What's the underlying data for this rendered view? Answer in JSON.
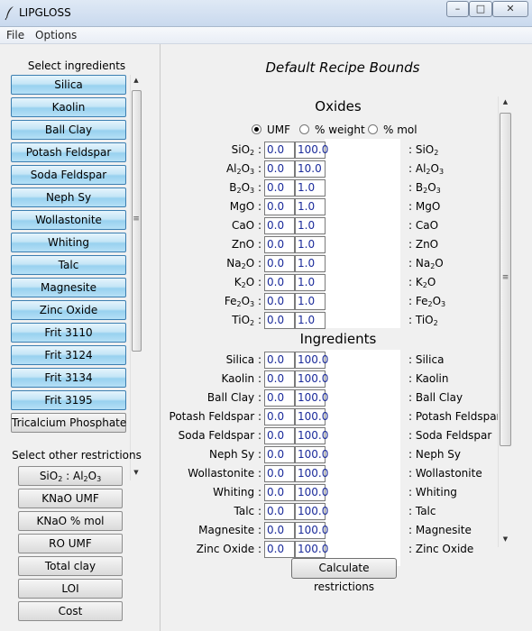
{
  "window": {
    "title": "LIPGLOSS",
    "minimize": "–",
    "maximize": "□",
    "close": "✕"
  },
  "menu": [
    "File",
    "Options"
  ],
  "left": {
    "ingredients_heading": "Select ingredients",
    "ingredients": [
      "Silica",
      "Kaolin",
      "Ball Clay",
      "Potash Feldspar",
      "Soda Feldspar",
      "Neph Sy",
      "Wollastonite",
      "Whiting",
      "Talc",
      "Magnesite",
      "Zinc Oxide",
      "Frit 3110",
      "Frit 3124",
      "Frit 3134",
      "Frit 3195",
      "Tricalcium Phosphate"
    ],
    "restrictions_heading": "Select other restrictions",
    "restrictions": [
      "SiO2 : Al2O3",
      "KNaO UMF",
      "KNaO % mol",
      "RO UMF",
      "Total clay",
      "LOI",
      "Cost"
    ]
  },
  "main": {
    "title": "Default Recipe Bounds",
    "oxides_heading": "Oxides",
    "units": [
      {
        "label": "UMF",
        "selected": true
      },
      {
        "label": "% weight",
        "selected": false
      },
      {
        "label": "% mol",
        "selected": false
      }
    ],
    "oxides": [
      {
        "name": "SiO2",
        "lo": "0.0",
        "hi": "100.0"
      },
      {
        "name": "Al2O3",
        "lo": "0.0",
        "hi": "10.0"
      },
      {
        "name": "B2O3",
        "lo": "0.0",
        "hi": "1.0"
      },
      {
        "name": "MgO",
        "lo": "0.0",
        "hi": "1.0"
      },
      {
        "name": "CaO",
        "lo": "0.0",
        "hi": "1.0"
      },
      {
        "name": "ZnO",
        "lo": "0.0",
        "hi": "1.0"
      },
      {
        "name": "Na2O",
        "lo": "0.0",
        "hi": "1.0"
      },
      {
        "name": "K2O",
        "lo": "0.0",
        "hi": "1.0"
      },
      {
        "name": "Fe2O3",
        "lo": "0.0",
        "hi": "1.0"
      },
      {
        "name": "TiO2",
        "lo": "0.0",
        "hi": "1.0"
      }
    ],
    "ingredients_heading": "Ingredients",
    "ingredients": [
      {
        "name": "Silica",
        "lo": "0.0",
        "hi": "100.0"
      },
      {
        "name": "Kaolin",
        "lo": "0.0",
        "hi": "100.0"
      },
      {
        "name": "Ball Clay",
        "lo": "0.0",
        "hi": "100.0"
      },
      {
        "name": "Potash Feldspar",
        "lo": "0.0",
        "hi": "100.0"
      },
      {
        "name": "Soda Feldspar",
        "lo": "0.0",
        "hi": "100.0"
      },
      {
        "name": "Neph Sy",
        "lo": "0.0",
        "hi": "100.0"
      },
      {
        "name": "Wollastonite",
        "lo": "0.0",
        "hi": "100.0"
      },
      {
        "name": "Whiting",
        "lo": "0.0",
        "hi": "100.0"
      },
      {
        "name": "Talc",
        "lo": "0.0",
        "hi": "100.0"
      },
      {
        "name": "Magnesite",
        "lo": "0.0",
        "hi": "100.0"
      },
      {
        "name": "Zinc Oxide",
        "lo": "0.0",
        "hi": "100.0"
      }
    ],
    "calculate_label": "Calculate restrictions"
  }
}
